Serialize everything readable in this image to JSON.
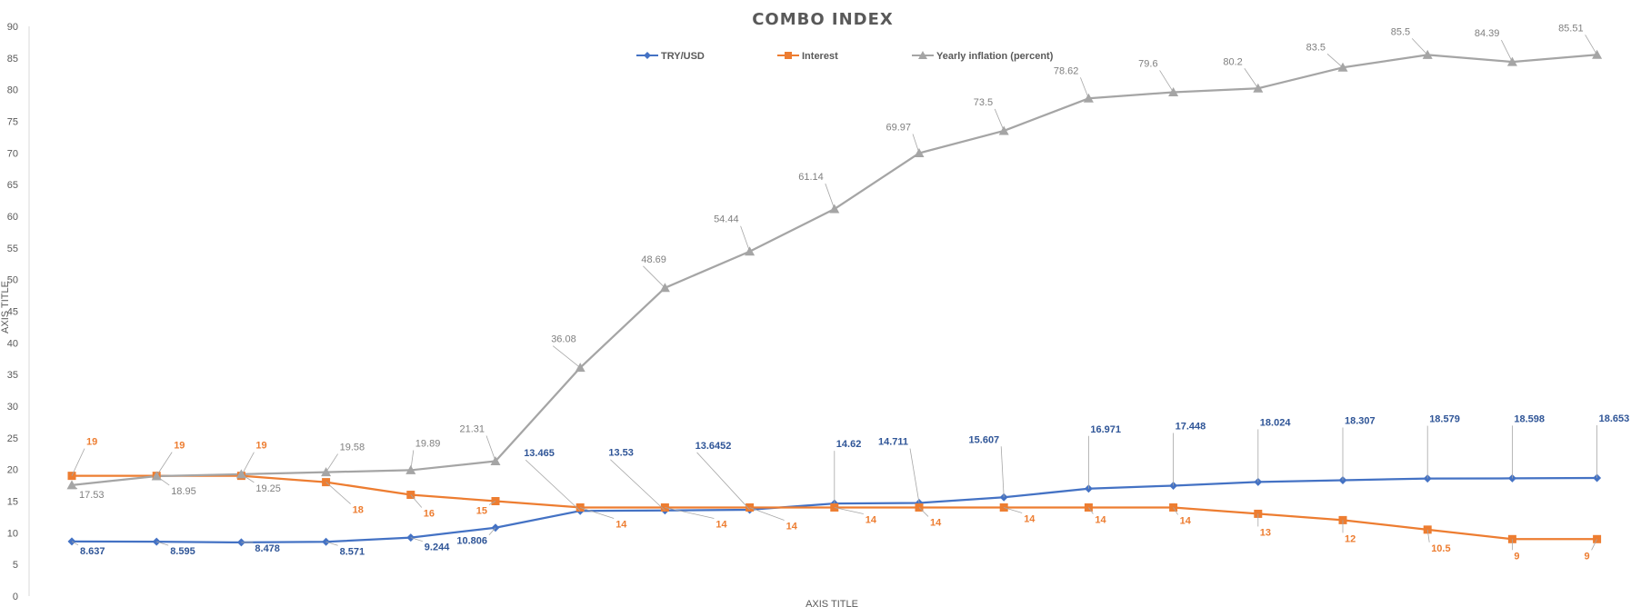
{
  "chart_data": {
    "type": "line",
    "title": "COMBO INDEX",
    "xlabel": "AXIS TITLE",
    "ylabel": "AXIS TITLE",
    "ylim": [
      0,
      90
    ],
    "y_ticks": [
      0,
      5,
      10,
      15,
      20,
      25,
      30,
      35,
      40,
      45,
      50,
      55,
      60,
      65,
      70,
      75,
      80,
      85,
      90
    ],
    "grid": false,
    "legend_position": "top",
    "point_count": 19,
    "series": [
      {
        "name": "TRY/USD",
        "color": "#4472c4",
        "marker": "diamond",
        "values": [
          8.637,
          8.595,
          8.478,
          8.571,
          9.244,
          10.806,
          13.465,
          13.53,
          13.6452,
          14.62,
          14.711,
          15.607,
          16.971,
          17.448,
          18.024,
          18.307,
          18.579,
          18.598,
          18.653
        ],
        "labels": [
          "8.637",
          "8.595",
          "8.478",
          "8.571",
          "9.244",
          "10.806",
          "13.465",
          "13.53",
          "13.6452",
          "14.62",
          "14.711",
          "15.607",
          "16.971",
          "17.448",
          "18.024",
          "18.307",
          "18.579",
          "18.598",
          "18.653"
        ]
      },
      {
        "name": "Interest",
        "color": "#ed7d31",
        "marker": "square",
        "values": [
          19,
          19,
          19,
          18,
          16,
          15,
          14,
          14,
          14,
          14,
          14,
          14,
          14,
          14,
          13,
          12,
          10.5,
          9,
          9
        ],
        "labels": [
          "19",
          "19",
          "19",
          "18",
          "16",
          "15",
          "14",
          "14",
          "14",
          "14",
          "14",
          "14",
          "14",
          "14",
          "13",
          "12",
          "10.5",
          "9",
          "9"
        ]
      },
      {
        "name": "Yearly inflation (percent)",
        "color": "#a5a5a5",
        "marker": "triangle",
        "values": [
          17.53,
          18.95,
          19.25,
          19.58,
          19.89,
          21.31,
          36.08,
          48.69,
          54.44,
          61.14,
          69.97,
          73.5,
          78.62,
          79.6,
          80.2,
          83.5,
          85.5,
          84.39,
          85.51
        ],
        "labels": [
          "17.53",
          "18.95",
          "19.25",
          "19.58",
          "19.89",
          "21.31",
          "36.08",
          "48.69",
          "54.44",
          "61.14",
          "69.97",
          "73.5",
          "78.62",
          "79.6",
          "80.2",
          "83.5",
          "85.5",
          "84.39",
          "85.51"
        ]
      }
    ]
  }
}
